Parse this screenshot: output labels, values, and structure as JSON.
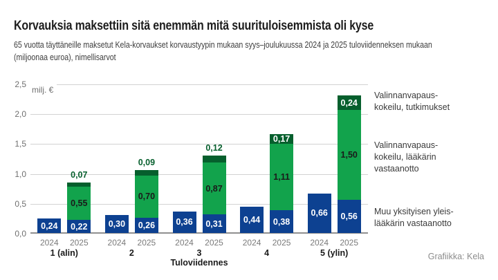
{
  "header": {
    "title": "Korvauksia maksettiin sitä enemmän mitä suurituloisemmista oli kyse",
    "subtitle": "65 vuotta täyttäneille maksetut Kela-korvaukset korvaustyypin mukaan syys–joulukuussa 2024 ja 2025 tuloviidenneksen mukaan\n(miljoonaa euroa), nimellisarvot"
  },
  "chart_data": {
    "type": "bar",
    "title": "Korvauksia maksettiin sitä enemmän mitä suurituloisemmista oli kyse",
    "subtitle": "65 vuotta täyttäneille maksetut Kela-korvaukset korvaustyypin mukaan syys–joulukuussa 2024 ja 2025 tuloviidenneksen mukaan (miljoonaa euroa), nimellisarvot",
    "unit_label": "milj. €",
    "xlabel": "Tuloviidennes",
    "ylim": [
      0,
      2.5
    ],
    "grid": true,
    "legend_position": "right",
    "y_ticks": [
      {
        "value": 0,
        "label": "0,0"
      },
      {
        "value": 0.5,
        "label": "0,5"
      },
      {
        "value": 1,
        "label": "1,0"
      },
      {
        "value": 1.5,
        "label": "1,5"
      },
      {
        "value": 2,
        "label": "2,0"
      },
      {
        "value": 2.5,
        "label": "2,5"
      }
    ],
    "categories": [
      "1 (alin)",
      "2",
      "3",
      "4",
      "5 (ylin)"
    ],
    "series_meta": {
      "muu": {
        "color": "#0d4191",
        "label_color": "#ffffff"
      },
      "laakari": {
        "color": "#12a34c",
        "label_color": "#1a1a1a"
      },
      "tutkimukset": {
        "color": "#065f2d",
        "label_color": "#ffffff"
      }
    },
    "groups": [
      {
        "category": "1 (alin)",
        "bars": [
          {
            "year": "2024",
            "segments": [
              {
                "series": "muu",
                "value": 0.24,
                "display": "0,24"
              }
            ]
          },
          {
            "year": "2025",
            "segments": [
              {
                "series": "muu",
                "value": 0.22,
                "display": "0,22"
              },
              {
                "series": "laakari",
                "value": 0.55,
                "display": "0,55"
              },
              {
                "series": "tutkimukset",
                "value": 0.07,
                "display": "0,07",
                "label_position": "above"
              }
            ]
          }
        ]
      },
      {
        "category": "2",
        "bars": [
          {
            "year": "2024",
            "segments": [
              {
                "series": "muu",
                "value": 0.3,
                "display": "0,30"
              }
            ]
          },
          {
            "year": "2025",
            "segments": [
              {
                "series": "muu",
                "value": 0.26,
                "display": "0,26"
              },
              {
                "series": "laakari",
                "value": 0.7,
                "display": "0,70"
              },
              {
                "series": "tutkimukset",
                "value": 0.09,
                "display": "0,09",
                "label_position": "above"
              }
            ]
          }
        ]
      },
      {
        "category": "3",
        "bars": [
          {
            "year": "2024",
            "segments": [
              {
                "series": "muu",
                "value": 0.36,
                "display": "0,36"
              }
            ]
          },
          {
            "year": "2025",
            "segments": [
              {
                "series": "muu",
                "value": 0.31,
                "display": "0,31"
              },
              {
                "series": "laakari",
                "value": 0.87,
                "display": "0,87"
              },
              {
                "series": "tutkimukset",
                "value": 0.12,
                "display": "0,12",
                "label_position": "above"
              }
            ]
          }
        ]
      },
      {
        "category": "4",
        "bars": [
          {
            "year": "2024",
            "segments": [
              {
                "series": "muu",
                "value": 0.44,
                "display": "0,44"
              }
            ]
          },
          {
            "year": "2025",
            "segments": [
              {
                "series": "muu",
                "value": 0.38,
                "display": "0,38"
              },
              {
                "series": "laakari",
                "value": 1.11,
                "display": "1,11"
              },
              {
                "series": "tutkimukset",
                "value": 0.17,
                "display": "0,17",
                "label_position": "inside"
              }
            ]
          }
        ]
      },
      {
        "category": "5 (ylin)",
        "bars": [
          {
            "year": "2024",
            "segments": [
              {
                "series": "muu",
                "value": 0.66,
                "display": "0,66"
              }
            ]
          },
          {
            "year": "2025",
            "segments": [
              {
                "series": "muu",
                "value": 0.56,
                "display": "0,56"
              },
              {
                "series": "laakari",
                "value": 1.5,
                "display": "1,50"
              },
              {
                "series": "tutkimukset",
                "value": 0.24,
                "display": "0,24",
                "label_position": "inside"
              }
            ]
          }
        ]
      }
    ]
  },
  "legend": {
    "items": [
      {
        "series": "tutkimukset",
        "text": "Valinnanvapaus-\nkokeilu, tutkimukset"
      },
      {
        "series": "laakari",
        "text": "Valinnanvapaus-\nkokeilu, lääkärin\nvastaanotto"
      },
      {
        "series": "muu",
        "text": "Muu yksityisen yleis-\nlääkärin vastaanotto"
      }
    ]
  },
  "footer": {
    "credit": "Grafiikka: Kela"
  },
  "colors": {
    "bar_blue": "#0d4191",
    "bar_green": "#12a34c",
    "bar_dark_green": "#065f2d",
    "gridline": "#d2d2d2",
    "baseline": "#8f8f8f",
    "tick_text": "#6f6f6f",
    "credit_text": "#8c8c8c"
  }
}
